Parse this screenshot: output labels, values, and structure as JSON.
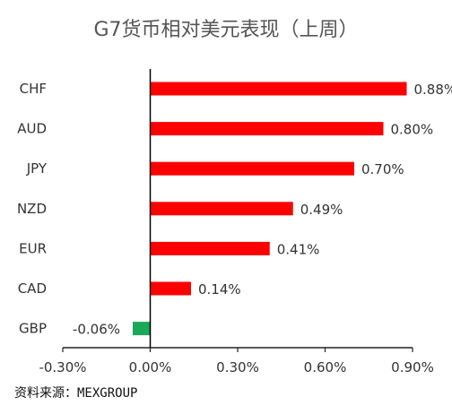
{
  "chart_data": {
    "type": "bar",
    "orientation": "horizontal",
    "title": "G7货币相对美元表现（上周）",
    "categories": [
      "CHF",
      "AUD",
      "JPY",
      "NZD",
      "EUR",
      "CAD",
      "GBP"
    ],
    "values": [
      0.88,
      0.8,
      0.7,
      0.49,
      0.41,
      0.14,
      -0.06
    ],
    "value_labels": [
      "0.88%",
      "0.80%",
      "0.70%",
      "0.49%",
      "0.41%",
      "0.14%",
      "-0.06%"
    ],
    "xlim": [
      -0.3,
      0.9
    ],
    "xticks": [
      -0.3,
      0.0,
      0.3,
      0.6,
      0.9
    ],
    "xtick_labels": [
      "-0.30%",
      "0.00%",
      "0.30%",
      "0.60%",
      "0.90%"
    ],
    "xlabel": "",
    "ylabel": "",
    "grid": false,
    "legend": false,
    "colors": {
      "positive": "#ff0000",
      "negative": "#1aa85a"
    }
  },
  "source": "资料来源：MEXGROUP"
}
